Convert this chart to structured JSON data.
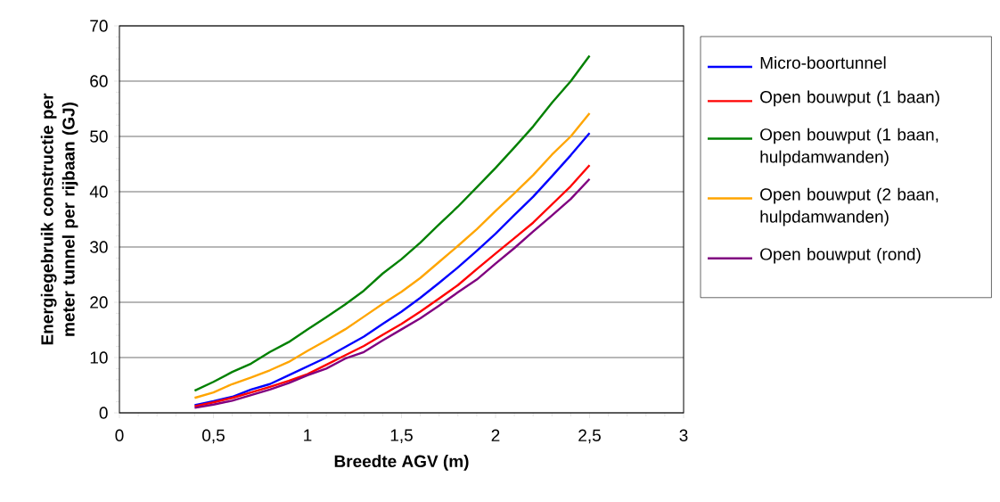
{
  "chart_data": {
    "type": "line",
    "xlabel": "Breedte AGV (m)",
    "ylabel": "Energiegebruik constructie per meter tunnel per rijbaan (GJ)",
    "x": [
      0.4,
      0.5,
      0.6,
      0.7,
      0.8,
      0.9,
      1.0,
      1.1,
      1.2,
      1.3,
      1.4,
      1.5,
      1.6,
      1.7,
      1.8,
      1.9,
      2.0,
      2.1,
      2.2,
      2.3,
      2.4,
      2.5
    ],
    "series": [
      {
        "name": "Micro-boortunnel",
        "color": "#0000ff",
        "values": [
          1.4,
          2.1,
          2.9,
          4.2,
          5.2,
          6.8,
          8.4,
          10.0,
          11.9,
          13.8,
          16.1,
          18.3,
          20.8,
          23.5,
          26.3,
          29.3,
          32.4,
          35.8,
          39.1,
          42.8,
          46.6,
          50.6
        ]
      },
      {
        "name": "Open bouwput (1 baan)",
        "color": "#ff0000",
        "values": [
          1.2,
          1.9,
          2.7,
          3.7,
          4.7,
          5.8,
          7.0,
          8.7,
          10.4,
          12.1,
          14.1,
          16.1,
          18.3,
          20.7,
          23.1,
          26.0,
          28.8,
          31.6,
          34.4,
          37.7,
          41.0,
          44.8
        ]
      },
      {
        "name": "Open bouwput (1 baan, hulpdamwanden)",
        "color": "#008000",
        "values": [
          4.0,
          5.6,
          7.4,
          8.9,
          11.0,
          12.8,
          15.1,
          17.3,
          19.6,
          22.1,
          25.2,
          27.8,
          30.8,
          34.1,
          37.3,
          40.8,
          44.3,
          48.0,
          51.8,
          56.1,
          60.0,
          64.6
        ]
      },
      {
        "name": "Open bouwput (2 baan, hulpdamwanden)",
        "color": "#ffa500",
        "values": [
          2.7,
          3.7,
          5.2,
          6.4,
          7.7,
          9.2,
          11.2,
          13.1,
          15.1,
          17.4,
          19.7,
          21.9,
          24.4,
          27.3,
          30.2,
          33.2,
          36.5,
          39.7,
          43.0,
          46.7,
          50.0,
          54.2
        ]
      },
      {
        "name": "Open bouwput (rond)",
        "color": "#800080",
        "values": [
          0.9,
          1.5,
          2.2,
          3.2,
          4.2,
          5.4,
          6.8,
          8.0,
          9.8,
          11.0,
          13.1,
          15.1,
          17.1,
          19.4,
          21.8,
          24.1,
          27.0,
          29.8,
          32.8,
          35.7,
          38.7,
          42.3
        ]
      }
    ],
    "xlim": [
      0,
      3
    ],
    "xticks": [
      0,
      {
        "value": 0.5,
        "label": "0,5"
      },
      1,
      {
        "value": 1.5,
        "label": "1,5"
      },
      2,
      {
        "value": 2.5,
        "label": "2,5"
      },
      3
    ],
    "ylim": [
      0,
      70
    ],
    "yticks": [
      0,
      10,
      20,
      30,
      40,
      50,
      60,
      70
    ],
    "grid": "y",
    "legend": "right",
    "marker": "none",
    "line_style": "solid"
  }
}
